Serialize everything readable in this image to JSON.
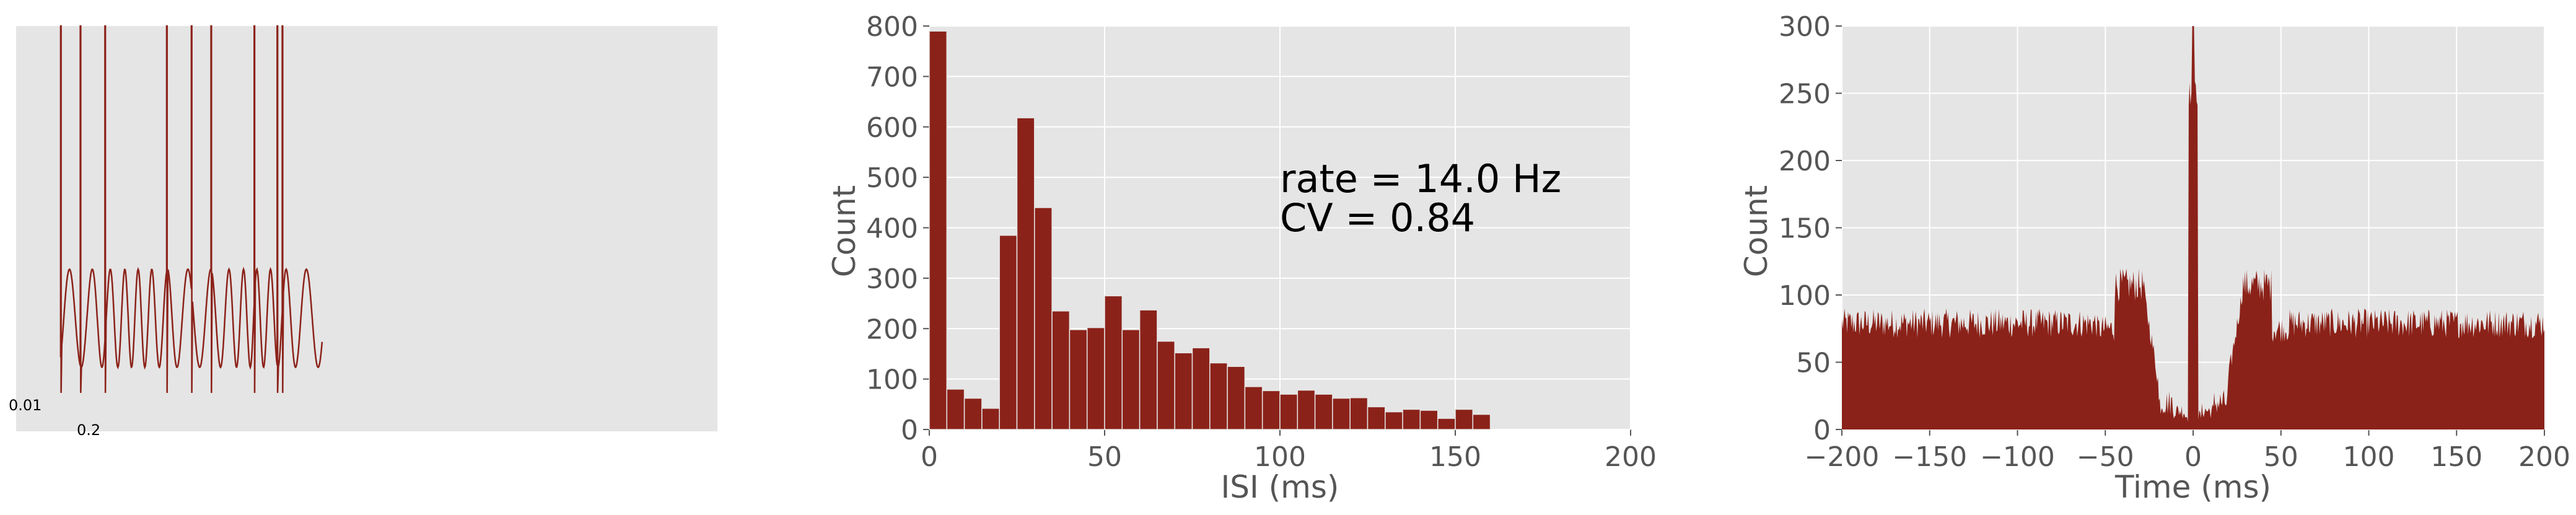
{
  "colors": {
    "data": "#8b2219",
    "panel_background": "#e5e5e5",
    "grid": "#ffffff",
    "text": "#555555"
  },
  "scalebar": {
    "vertical_label": "0.01",
    "horizontal_label": "0.2"
  },
  "chart_data": [
    {
      "type": "line",
      "title": "",
      "description_kind": "voltage trace with spikes (no axes shown)",
      "xlim": [
        0,
        1.0
      ],
      "ylim": [
        -0.04,
        0.055
      ],
      "grid": false,
      "spike_times": [
        0.064,
        0.092,
        0.127,
        0.215,
        0.25,
        0.278,
        0.34,
        0.373,
        0.38
      ],
      "spike_peak": 0.055,
      "baseline_range": [
        -0.025,
        -0.002
      ]
    },
    {
      "type": "bar",
      "title": "",
      "xlabel": "ISI (ms)",
      "ylabel": "Count",
      "xlim": [
        0,
        200
      ],
      "ylim": [
        0,
        800
      ],
      "xticks": [
        "0",
        "50",
        "100",
        "150",
        "200"
      ],
      "yticks": [
        "0",
        "100",
        "200",
        "300",
        "400",
        "500",
        "600",
        "700",
        "800"
      ],
      "grid": true,
      "bin_width": 5,
      "bin_starts": [
        0,
        5,
        10,
        15,
        20,
        25,
        30,
        35,
        40,
        45,
        50,
        55,
        60,
        65,
        70,
        75,
        80,
        85,
        90,
        95,
        100,
        105,
        110,
        115,
        120,
        125,
        130,
        135,
        140,
        145,
        150,
        155,
        160,
        165,
        170,
        175,
        180,
        185,
        190,
        195
      ],
      "values": [
        790,
        80,
        62,
        42,
        385,
        618,
        440,
        235,
        198,
        202,
        265,
        198,
        237,
        175,
        152,
        162,
        132,
        125,
        85,
        77,
        70,
        78,
        70,
        62,
        63,
        45,
        35,
        40,
        38,
        22,
        40,
        30,
        0,
        0,
        0,
        0,
        0,
        0,
        0,
        0
      ],
      "annotations": [
        "rate = 14.0 Hz",
        "CV = 0.84"
      ]
    },
    {
      "type": "area",
      "title": "",
      "xlabel": "Time (ms)",
      "ylabel": "Count",
      "xlim": [
        -200,
        200
      ],
      "ylim": [
        0,
        300
      ],
      "xticks": [
        "−200",
        "−150",
        "−100",
        "−50",
        "0",
        "50",
        "100",
        "150",
        "200"
      ],
      "yticks": [
        "0",
        "50",
        "100",
        "150",
        "200",
        "250",
        "300"
      ],
      "grid": true,
      "description_kind": "spike-train autocorrelogram"
    }
  ]
}
